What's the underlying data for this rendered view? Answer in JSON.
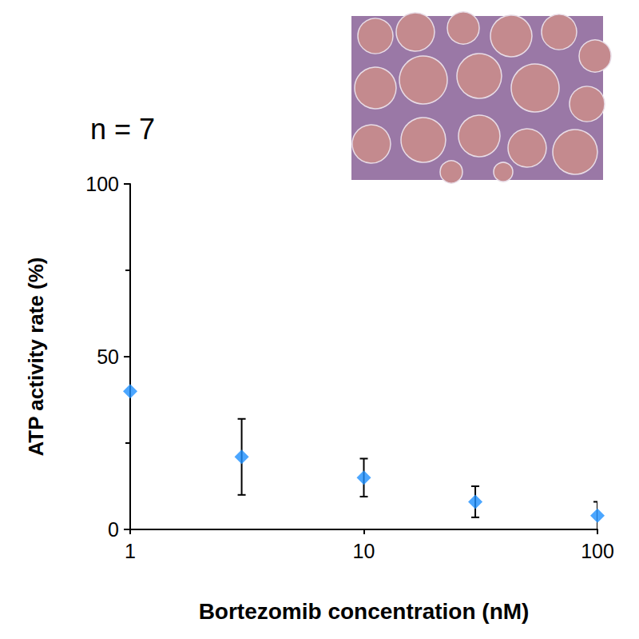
{
  "chart_data": {
    "type": "scatter",
    "title": "n = 7",
    "x_label": "Bortezomib concentration (nM)",
    "y_label": "ATP activity rate (%)",
    "x": [
      1,
      3,
      10,
      30,
      100
    ],
    "values": [
      40,
      21,
      15,
      8,
      4
    ],
    "errors": [
      null,
      11,
      5.5,
      4.5,
      4
    ],
    "color": "#1e90ff",
    "marker": "diamond",
    "log": "x",
    "xlim": [
      1,
      100
    ],
    "xticks": [
      1,
      10,
      100
    ],
    "ylim": [
      0,
      100
    ],
    "yticks": [
      0,
      50,
      100
    ],
    "grid": false
  }
}
